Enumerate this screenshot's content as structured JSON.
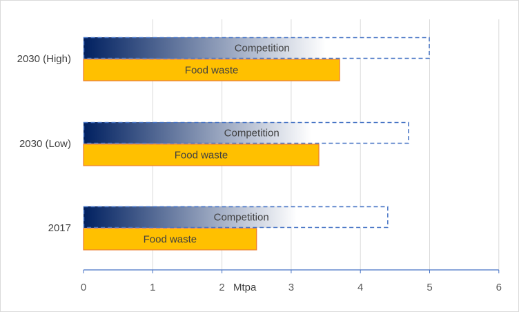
{
  "chart_data": {
    "type": "bar",
    "orientation": "horizontal",
    "categories": [
      "2030 (High)",
      "2030 (Low)",
      "2017"
    ],
    "series": [
      {
        "name": "Competition",
        "values": [
          5.0,
          4.7,
          4.4
        ],
        "style": "dashed-outline-gradient"
      },
      {
        "name": "Food waste",
        "values": [
          3.7,
          3.4,
          2.5
        ],
        "style": "solid"
      }
    ],
    "xlim": [
      0,
      6
    ],
    "xticks": [
      0,
      1,
      2,
      3,
      4,
      5,
      6
    ],
    "unit_label": "Mtpa",
    "grid": "vertical",
    "legend": "none",
    "colors": {
      "competition_gradient_start": "#002060",
      "competition_gradient_end": "#ffffff",
      "competition_border": "#4472c4",
      "food_waste_fill": "#ffc000",
      "food_waste_border": "#ed7d31",
      "gridline": "#d9d9d9",
      "axis": "#4472c4"
    }
  }
}
